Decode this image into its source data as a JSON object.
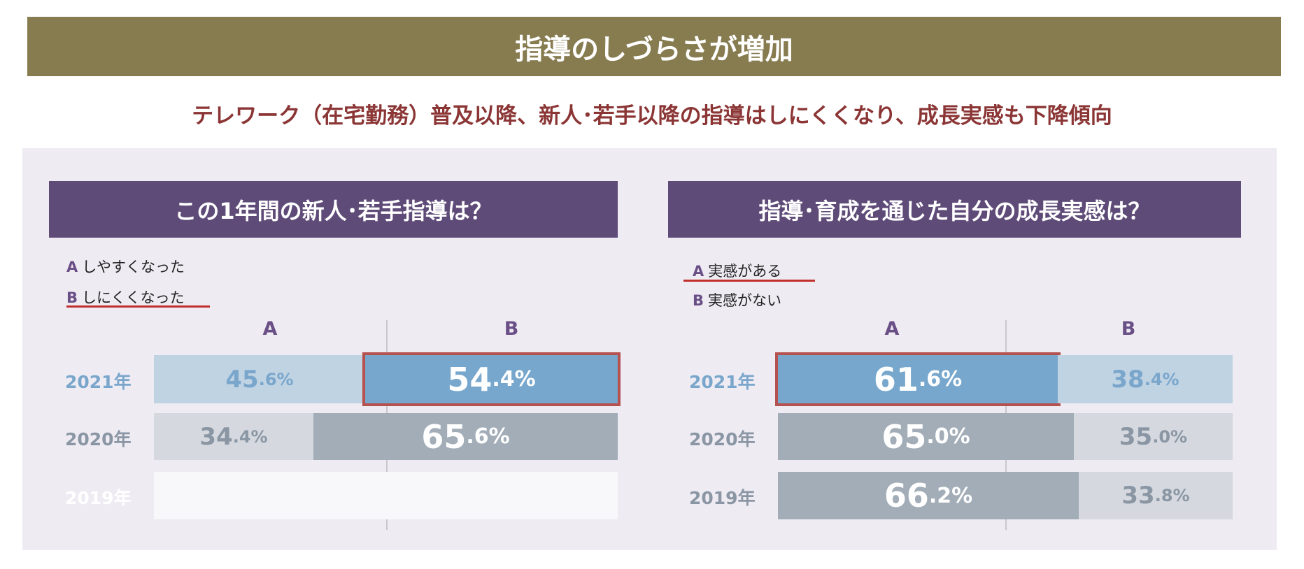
{
  "title": "指導のしづらさが増加",
  "subtitle": "テレワーク（在宅勤務）普及以降、新人･若手以降の指導はしにくくなり、成長実感も下降傾向",
  "colors": {
    "banner": "#877c50",
    "subtitle": "#8b3535",
    "header": "#5e4b78",
    "highlight": "#b5524f"
  },
  "chart_data": [
    {
      "type": "bar",
      "stacked": true,
      "orientation": "horizontal",
      "title": "この1年間の新人･若手指導は？",
      "legend": [
        {
          "key": "A",
          "label": "しやすくなった"
        },
        {
          "key": "B",
          "label": "しにくくなった",
          "underlined": true
        }
      ],
      "columns": [
        "A",
        "B"
      ],
      "categories": [
        "2021年",
        "2020年",
        "2019年"
      ],
      "series": [
        {
          "name": "A",
          "values": [
            45.6,
            34.4,
            null
          ]
        },
        {
          "name": "B",
          "values": [
            54.4,
            65.6,
            null
          ]
        }
      ],
      "highlight": {
        "row": 0,
        "series": "B"
      },
      "unit": "%"
    },
    {
      "type": "bar",
      "stacked": true,
      "orientation": "horizontal",
      "title": "指導･育成を通じた自分の成長実感は？",
      "legend": [
        {
          "key": "A",
          "label": "実感がある",
          "underlined": true
        },
        {
          "key": "B",
          "label": "実感がない"
        }
      ],
      "columns": [
        "A",
        "B"
      ],
      "categories": [
        "2021年",
        "2020年",
        "2019年"
      ],
      "series": [
        {
          "name": "A",
          "values": [
            61.6,
            65.0,
            66.2
          ]
        },
        {
          "name": "B",
          "values": [
            38.4,
            35.0,
            33.8
          ]
        }
      ],
      "highlight": {
        "row": 0,
        "series": "A"
      },
      "unit": "%"
    }
  ]
}
